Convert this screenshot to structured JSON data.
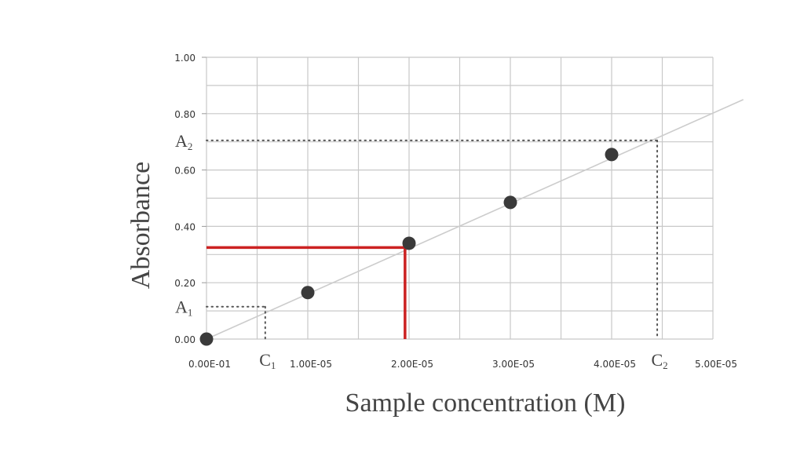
{
  "chart_data": {
    "type": "scatter",
    "title": "",
    "xlabel": "Sample concentration (M)",
    "ylabel": "Absorbance",
    "xlim": [
      0,
      5e-05
    ],
    "ylim": [
      0,
      1.0
    ],
    "grid": true,
    "x_tick_values": [
      0,
      1e-05,
      2e-05,
      3e-05,
      4e-05,
      5e-05
    ],
    "x_tick_labels": [
      "0.00E-01",
      "1.00E-05",
      "2.00E-05",
      "3.00E-05",
      "4.00E-05",
      "5.00E-05"
    ],
    "y_tick_values": [
      0,
      0.2,
      0.4,
      0.6,
      0.8,
      1.0
    ],
    "y_tick_labels": [
      "0.00",
      "0.20",
      "0.40",
      "0.60",
      "0.80",
      "1.00"
    ],
    "x_minor_step": 5e-06,
    "y_minor_step": 0.1,
    "series": [
      {
        "x": [
          0,
          1e-05,
          2e-05,
          3e-05,
          4e-05
        ],
        "y": [
          0.0,
          0.165,
          0.34,
          0.485,
          0.655
        ],
        "color": "#3a3a3a"
      }
    ],
    "fit_line": {
      "x": [
        0,
        5.3e-05
      ],
      "y": [
        0,
        0.85
      ],
      "color": "#cccccc"
    },
    "references": [
      {
        "name": "low",
        "x": 5.8e-06,
        "y": 0.115,
        "x_label": "C",
        "x_sub": "1",
        "y_label": "A",
        "y_sub": "1",
        "style": "dotted",
        "color": "#555555"
      },
      {
        "name": "high",
        "x": 4.45e-05,
        "y": 0.705,
        "x_label": "C",
        "x_sub": "2",
        "y_label": "A",
        "y_sub": "2",
        "style": "dotted",
        "color": "#555555"
      },
      {
        "name": "highlight",
        "x": 1.96e-05,
        "y": 0.325,
        "style": "solid",
        "color": "#cc2222"
      }
    ]
  }
}
